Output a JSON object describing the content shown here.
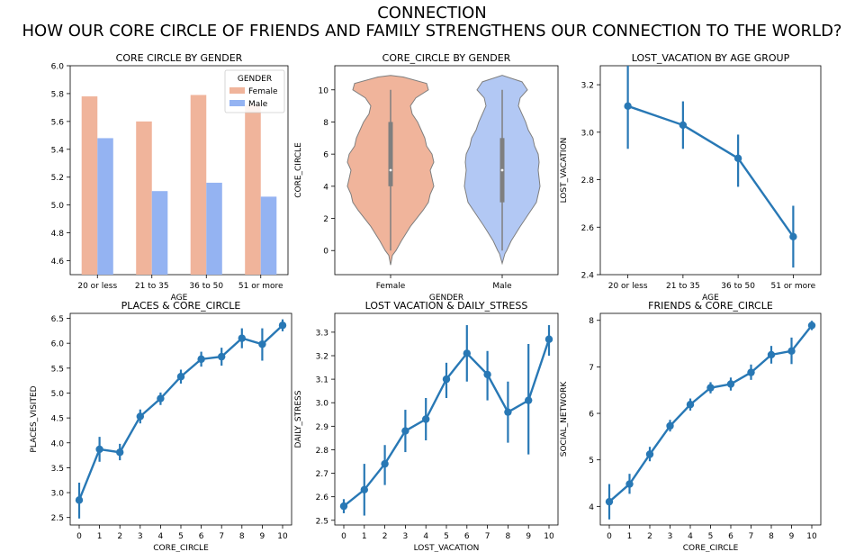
{
  "figure": {
    "title_line1": "CONNECTION",
    "title_line2": "HOW OUR CORE CIRCLE OF FRIENDS AND FAMILY STRENGTHENS OUR CONNECTION TO THE WORLD?"
  },
  "colors": {
    "female": "#F0B49B",
    "male": "#94B3F2",
    "violin_female": "#F0B49B",
    "violin_male": "#B2C8F4",
    "line": "#2878B5",
    "axis": "#000000"
  },
  "chart_data": [
    {
      "type": "bar",
      "title": "CORE  CIRCLE BY GENDER",
      "xlabel": "AGE",
      "ylabel": "",
      "categories": [
        "20 or less",
        "21 to 35",
        "36 to 50",
        "51 or more"
      ],
      "series": [
        {
          "name": "Female",
          "values": [
            5.78,
            5.6,
            5.79,
            5.72
          ]
        },
        {
          "name": "Male",
          "values": [
            5.48,
            5.1,
            5.16,
            5.06
          ]
        }
      ],
      "ylim": [
        4.5,
        6.0
      ],
      "yticks": [
        4.6,
        4.8,
        5.0,
        5.2,
        5.4,
        5.6,
        5.8,
        6.0
      ],
      "legend": {
        "title": "GENDER",
        "position": "top-right"
      },
      "grid": false
    },
    {
      "type": "violin",
      "title": "CORE_CIRCLE BY GENDER",
      "xlabel": "GENDER",
      "ylabel": "CORE_CIRCLE",
      "categories": [
        "Female",
        "Male"
      ],
      "ylim": [
        -1.5,
        11.5
      ],
      "yticks": [
        0,
        2,
        4,
        6,
        8,
        10
      ],
      "series": [
        {
          "name": "Female",
          "data_range": [
            -0.9,
            10.9
          ],
          "q1": 4,
          "median": 5,
          "q3": 8,
          "whisker_low": 0,
          "whisker_high": 10
        },
        {
          "name": "Male",
          "data_range": [
            -0.8,
            10.9
          ],
          "q1": 3,
          "median": 5,
          "q3": 7,
          "whisker_low": 0,
          "whisker_high": 10
        }
      ],
      "grid": false
    },
    {
      "type": "line",
      "title": "LOST_VACATION BY AGE GROUP",
      "xlabel": "AGE",
      "ylabel": "LOST_VACATION",
      "categories": [
        "20 or less",
        "21 to 35",
        "36 to 50",
        "51 or more"
      ],
      "values": [
        3.11,
        3.03,
        2.89,
        2.56
      ],
      "err_low": [
        2.93,
        2.93,
        2.77,
        2.43
      ],
      "err_high": [
        3.28,
        3.13,
        2.99,
        2.69
      ],
      "ylim": [
        2.4,
        3.28
      ],
      "yticks": [
        2.4,
        2.6,
        2.8,
        3.0,
        3.2
      ],
      "grid": false
    },
    {
      "type": "line",
      "title": "PLACES & CORE_CIRCLE",
      "xlabel": "CORE_CIRCLE",
      "ylabel": "PLACES_VISITED",
      "categories": [
        "0",
        "1",
        "2",
        "3",
        "4",
        "5",
        "6",
        "7",
        "8",
        "9",
        "10"
      ],
      "values": [
        2.85,
        3.87,
        3.81,
        4.53,
        4.89,
        5.33,
        5.68,
        5.73,
        6.1,
        5.98,
        6.36
      ],
      "err_low": [
        2.48,
        3.62,
        3.65,
        4.39,
        4.76,
        5.19,
        5.53,
        5.55,
        5.9,
        5.65,
        6.24
      ],
      "err_high": [
        3.2,
        4.12,
        3.98,
        4.67,
        5.01,
        5.47,
        5.83,
        5.91,
        6.3,
        6.3,
        6.48
      ],
      "ylim": [
        2.35,
        6.6
      ],
      "yticks": [
        2.5,
        3.0,
        3.5,
        4.0,
        4.5,
        5.0,
        5.5,
        6.0,
        6.5
      ],
      "grid": false
    },
    {
      "type": "line",
      "title": "LOST VACATION & DAILY_STRESS",
      "xlabel": "LOST_VACATION",
      "ylabel": "DAILY_STRESS",
      "categories": [
        "0",
        "1",
        "2",
        "3",
        "4",
        "5",
        "6",
        "7",
        "8",
        "9",
        "10"
      ],
      "values": [
        2.56,
        2.63,
        2.74,
        2.88,
        2.93,
        3.1,
        3.21,
        3.12,
        2.96,
        3.01,
        3.27
      ],
      "err_low": [
        2.53,
        2.52,
        2.65,
        2.79,
        2.84,
        3.02,
        3.09,
        3.01,
        2.83,
        2.78,
        3.2
      ],
      "err_high": [
        2.59,
        2.74,
        2.82,
        2.97,
        3.02,
        3.17,
        3.33,
        3.22,
        3.09,
        3.25,
        3.33
      ],
      "ylim": [
        2.48,
        3.38
      ],
      "yticks": [
        2.5,
        2.6,
        2.7,
        2.8,
        2.9,
        3.0,
        3.1,
        3.2,
        3.3
      ],
      "grid": false
    },
    {
      "type": "line",
      "title": "FRIENDS & CORE_CIRCLE",
      "xlabel": "CORE_CIRCLE",
      "ylabel": "SOCIAL_NETWORK",
      "categories": [
        "0",
        "1",
        "2",
        "3",
        "4",
        "5",
        "6",
        "7",
        "8",
        "9",
        "10"
      ],
      "values": [
        4.1,
        4.48,
        5.12,
        5.73,
        6.19,
        6.55,
        6.63,
        6.88,
        7.26,
        7.34,
        7.89
      ],
      "err_low": [
        3.72,
        4.27,
        4.97,
        5.61,
        6.06,
        6.43,
        6.49,
        6.72,
        7.07,
        7.06,
        7.79
      ],
      "err_high": [
        4.48,
        4.7,
        5.28,
        5.86,
        6.32,
        6.67,
        6.77,
        7.05,
        7.45,
        7.63,
        7.99
      ],
      "ylim": [
        3.6,
        8.15
      ],
      "yticks": [
        4,
        5,
        6,
        7,
        8
      ],
      "grid": false
    }
  ]
}
